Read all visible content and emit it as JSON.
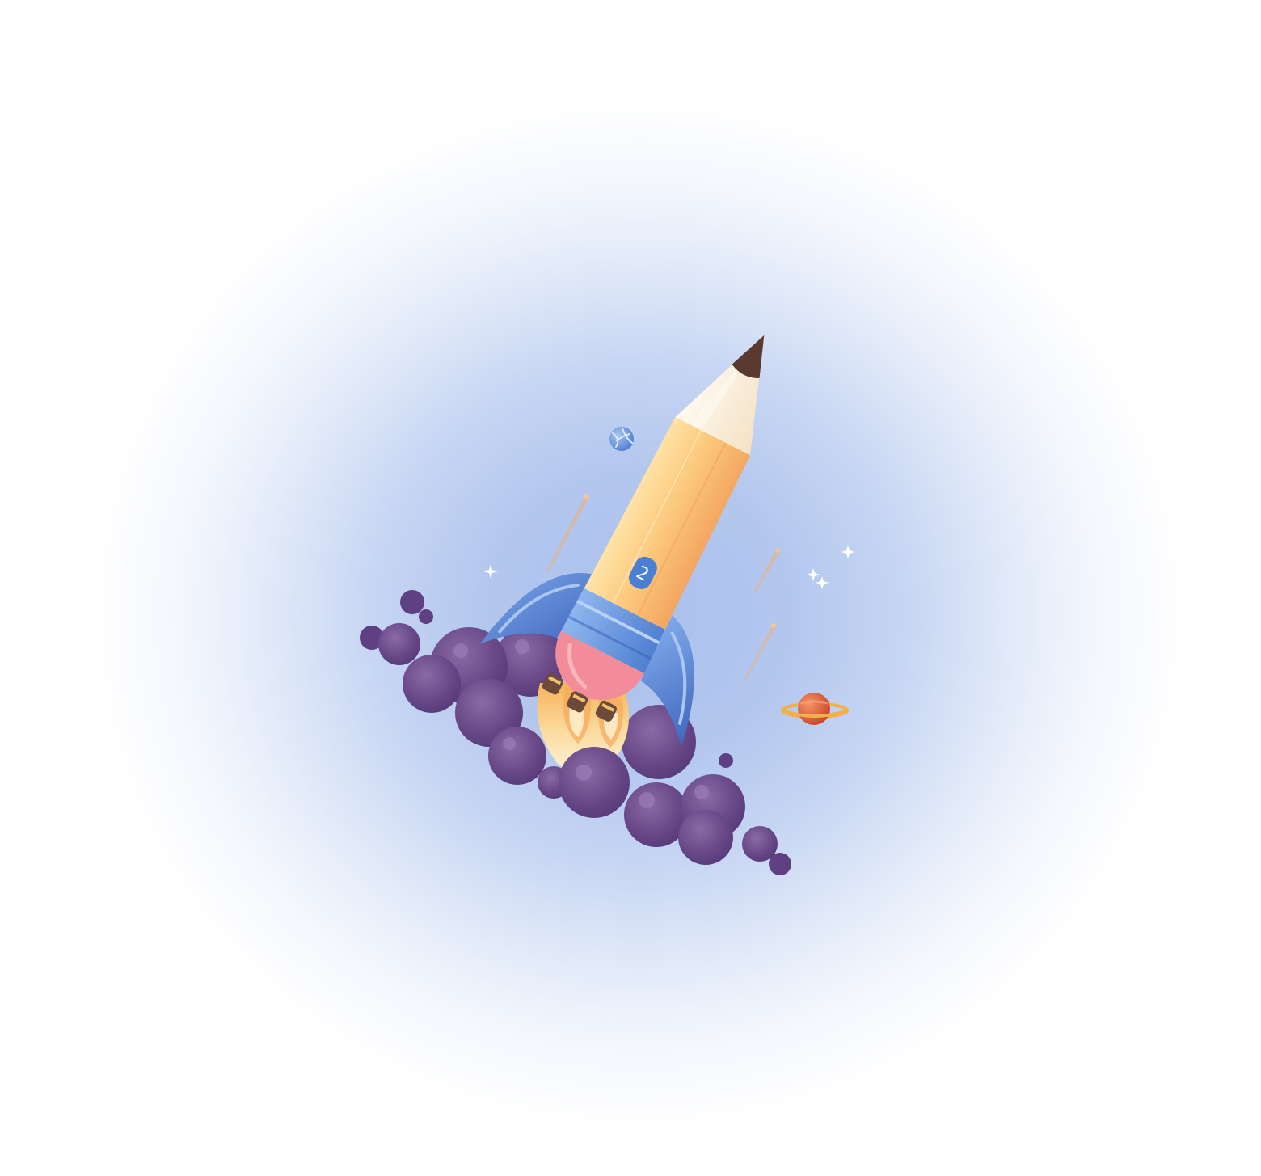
{
  "illustration": {
    "subject": "pencil-rocket-launch",
    "badge_number": "2",
    "icons": [
      "pencil-rocket-icon",
      "smoke-cloud-icon",
      "planet-ringed-icon",
      "planet-small-icon",
      "sparkle-icon",
      "meteor-streak-icon"
    ],
    "colors": {
      "background_center": "#aac0ec",
      "background_edge": "#ffffff",
      "pencil_body": "#fbc77a",
      "pencil_tip_wood": "#fbf2e2",
      "pencil_lead": "#5a3a2e",
      "rocket_band": "#6f9ee0",
      "rocket_fins": "#5a86d6",
      "rocket_nozzle": "#f28c98",
      "flame": "#fbe7b8",
      "smoke": "#6b4a87",
      "planet": "#e06a3a",
      "small_planet": "#6f9be0",
      "sparkle": "#ffffff",
      "meteor": "#f0a062"
    }
  }
}
